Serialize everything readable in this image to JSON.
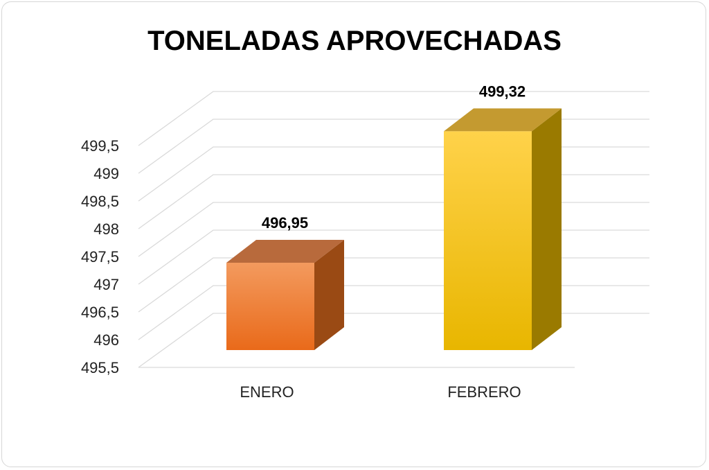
{
  "chart_data": {
    "type": "bar",
    "title": "TONELADAS APROVECHADAS",
    "categories": [
      "ENERO",
      "FEBRERO"
    ],
    "values": [
      496.95,
      499.32
    ],
    "data_labels": [
      "496,95",
      "499,32"
    ],
    "ylim": [
      495.5,
      499.5
    ],
    "yticks": [
      "495,5",
      "496",
      "496,5",
      "497",
      "497,5",
      "498",
      "498,5",
      "499",
      "499,5"
    ],
    "grid": true,
    "legend": "none",
    "style": "3d-column",
    "colors": {
      "bar_1": {
        "front_top": "#f39a5e",
        "front_bottom": "#e96a1a",
        "top": "#b86a3c",
        "side": "#9a4a14"
      },
      "bar_2": {
        "front_top": "#ffd24a",
        "front_bottom": "#e8b600",
        "top": "#c49a30",
        "side": "#9a7a00"
      },
      "grid": "#d9d9d9"
    }
  }
}
